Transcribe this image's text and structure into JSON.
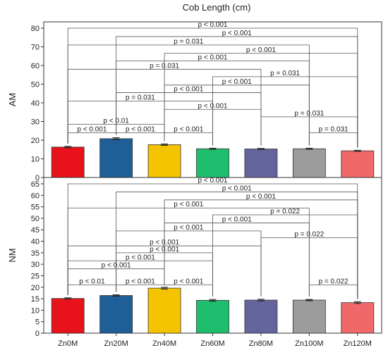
{
  "chart_data": {
    "type": "bar",
    "title": "Cob Length (cm)",
    "categories": [
      "Zn0M",
      "Zn20M",
      "Zn40M",
      "Zn60M",
      "Zn80M",
      "Zn100M",
      "Zn120M"
    ],
    "colors": [
      "#e8121b",
      "#1f5e96",
      "#f5c400",
      "#1fbe6e",
      "#65659d",
      "#9c9c9c",
      "#f0686a"
    ],
    "panels": [
      {
        "ylabel": "AM",
        "ylim": [
          0,
          80
        ],
        "yticks": [
          0,
          10,
          20,
          30,
          40,
          50,
          60,
          70,
          80
        ],
        "values": [
          16.3,
          20.8,
          17.6,
          15.4,
          15.3,
          15.4,
          14.3
        ],
        "errors": [
          0.4,
          0.5,
          0.4,
          0.3,
          0.3,
          0.3,
          0.3
        ],
        "comparisons": [
          {
            "from": 0,
            "to": 6,
            "label": "p < 0.001",
            "level": 80
          },
          {
            "from": 1,
            "to": 6,
            "label": "p < 0.001",
            "level": 75.5
          },
          {
            "from": 0,
            "to": 5,
            "label": "p = 0.031",
            "level": 71
          },
          {
            "from": 2,
            "to": 6,
            "label": "p < 0.001",
            "level": 66.5
          },
          {
            "from": 1,
            "to": 5,
            "label": "p < 0.001",
            "level": 62.5
          },
          {
            "from": 0,
            "to": 4,
            "label": "p = 0.031",
            "level": 58
          },
          {
            "from": 3,
            "to": 6,
            "label": "p = 0.031",
            "level": 54
          },
          {
            "from": 2,
            "to": 5,
            "label": "p < 0.001",
            "level": 49.5
          },
          {
            "from": 1,
            "to": 4,
            "label": "p < 0.001",
            "level": 45.5
          },
          {
            "from": 0,
            "to": 3,
            "label": "p = 0.031",
            "level": 41
          },
          {
            "from": 2,
            "to": 4,
            "label": "p < 0.001",
            "level": 36.5
          },
          {
            "from": 4,
            "to": 6,
            "label": "p = 0.031",
            "level": 32.5
          },
          {
            "from": 0,
            "to": 2,
            "label": "p < 0.01",
            "level": 28.5
          },
          {
            "from": 0,
            "to": 1,
            "label": "p < 0.001",
            "level": 24
          },
          {
            "from": 1,
            "to": 2,
            "label": "p < 0.001",
            "level": 24
          },
          {
            "from": 2,
            "to": 3,
            "label": "p < 0.001",
            "level": 24
          },
          {
            "from": 5,
            "to": 6,
            "label": "p = 0.031",
            "level": 24
          }
        ]
      },
      {
        "ylabel": "NM",
        "ylim": [
          0,
          65
        ],
        "yticks": [
          0,
          5,
          10,
          15,
          20,
          25,
          30,
          35,
          40,
          45,
          50,
          55,
          60,
          65
        ],
        "values": [
          15.1,
          16.4,
          19.6,
          14.3,
          14.4,
          14.4,
          13.3
        ],
        "errors": [
          0.3,
          0.3,
          0.4,
          0.4,
          0.4,
          0.3,
          0.4
        ],
        "comparisons": [
          {
            "from": 0,
            "to": 6,
            "label": "p < 0.001",
            "level": 65
          },
          {
            "from": 1,
            "to": 6,
            "label": "p < 0.001",
            "level": 61.5
          },
          {
            "from": 2,
            "to": 6,
            "label": "p < 0.001",
            "level": 58
          },
          {
            "from": 0,
            "to": 5,
            "label": "p < 0.001",
            "level": 54.5
          },
          {
            "from": 3,
            "to": 6,
            "label": "p = 0.022",
            "level": 51.5
          },
          {
            "from": 2,
            "to": 5,
            "label": "p < 0.001",
            "level": 48
          },
          {
            "from": 1,
            "to": 4,
            "label": "p < 0.001",
            "level": 44.5
          },
          {
            "from": 4,
            "to": 6,
            "label": "p = 0.022",
            "level": 41.5
          },
          {
            "from": 0,
            "to": 4,
            "label": "p < 0.001",
            "level": 38
          },
          {
            "from": 1,
            "to": 3,
            "label": "p < 0.001",
            "level": 35
          },
          {
            "from": 0,
            "to": 3,
            "label": "p < 0.001",
            "level": 31.5
          },
          {
            "from": 0,
            "to": 2,
            "label": "p < 0.001",
            "level": 28
          },
          {
            "from": 0,
            "to": 1,
            "label": "p < 0.01",
            "level": 21
          },
          {
            "from": 1,
            "to": 2,
            "label": "p < 0.001",
            "level": 21
          },
          {
            "from": 2,
            "to": 3,
            "label": "p < 0.001",
            "level": 21
          },
          {
            "from": 5,
            "to": 6,
            "label": "p = 0.022",
            "level": 21
          }
        ]
      }
    ]
  }
}
